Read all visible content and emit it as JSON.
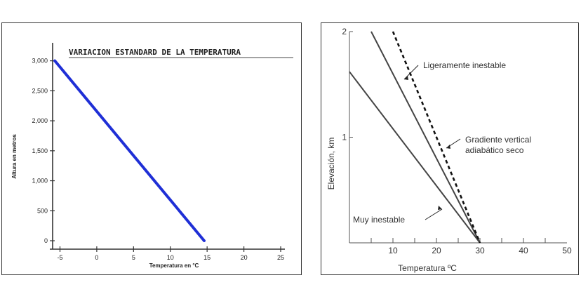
{
  "chart_data": [
    {
      "type": "line",
      "title": "VARIACION ESTANDARD DE LA TEMPERATURA",
      "xlabel": "Temperatura en °C",
      "ylabel": "Altura en metros",
      "xlim": [
        -6,
        25
      ],
      "ylim": [
        0,
        3300
      ],
      "x_ticks": [
        "-5",
        "0",
        "5",
        "10",
        "15",
        "20",
        "25"
      ],
      "x_tick_values": [
        -5,
        0,
        5,
        10,
        15,
        20,
        25
      ],
      "y_ticks": [
        "3,000",
        "2,500",
        "2,000",
        "1,500",
        "1,000",
        "500",
        "0"
      ],
      "y_tick_values": [
        3000,
        2500,
        2000,
        1500,
        1000,
        500,
        0
      ],
      "series": [
        {
          "x": [
            -5.7,
            14.6
          ],
          "y": [
            3000,
            0
          ],
          "color": "#1f2fd6"
        }
      ]
    },
    {
      "type": "line",
      "title": "",
      "xlabel": "Temperatura ºC",
      "ylabel": "Elevación, km",
      "xlim": [
        0,
        50
      ],
      "ylim": [
        0,
        2
      ],
      "x_ticks": [
        "10",
        "20",
        "30",
        "40",
        "50"
      ],
      "x_tick_values": [
        10,
        20,
        30,
        40,
        50
      ],
      "y_ticks": [
        "2",
        "1"
      ],
      "y_tick_values": [
        2,
        1
      ],
      "series": [
        {
          "x": [
            0,
            30
          ],
          "y": [
            1.62,
            0
          ],
          "style": "solid",
          "color": "#444444"
        },
        {
          "x": [
            5,
            30
          ],
          "y": [
            2,
            0
          ],
          "style": "solid",
          "color": "#444444"
        },
        {
          "x": [
            10,
            30
          ],
          "y": [
            2,
            0
          ],
          "style": "dashed",
          "color": "#111111"
        }
      ],
      "annotations": [
        {
          "lines": [
            "Ligeramente inestable"
          ]
        },
        {
          "lines": [
            "Gradiente vertical",
            "adiabático seco"
          ]
        },
        {
          "lines": [
            "Muy inestable"
          ]
        }
      ]
    }
  ]
}
